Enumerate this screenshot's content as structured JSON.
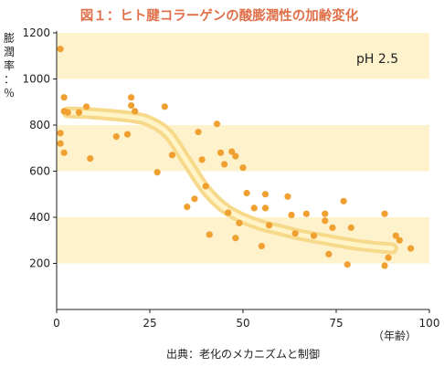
{
  "chart_data": {
    "type": "scatter",
    "title": "図１：ヒト腱コラーゲンの酸膨潤性の加齢変化",
    "ylabel_chars": [
      "膨",
      "潤",
      "率",
      "：",
      "％"
    ],
    "xlabel": "（年齢）",
    "xlim": [
      0,
      100
    ],
    "ylim": [
      0,
      1200
    ],
    "x_ticks": [
      0,
      25,
      50,
      75,
      100
    ],
    "y_ticks": [
      200,
      400,
      600,
      800,
      1000,
      1200
    ],
    "annotation": "pH 2.5",
    "source": "出典：老化のメカニズムと制御",
    "colors": {
      "points": "#f0a030",
      "bands": "#fdf2cc",
      "trend_outer": "#f6d98a",
      "trend_inner": "#fff4c8",
      "title": "#e0704a"
    },
    "points": [
      {
        "x": 1,
        "y": 1130
      },
      {
        "x": 2,
        "y": 920
      },
      {
        "x": 1,
        "y": 765
      },
      {
        "x": 2,
        "y": 860
      },
      {
        "x": 3,
        "y": 855
      },
      {
        "x": 1,
        "y": 720
      },
      {
        "x": 2,
        "y": 680
      },
      {
        "x": 6,
        "y": 855
      },
      {
        "x": 8,
        "y": 880
      },
      {
        "x": 9,
        "y": 655
      },
      {
        "x": 16,
        "y": 750
      },
      {
        "x": 19,
        "y": 760
      },
      {
        "x": 20,
        "y": 920
      },
      {
        "x": 20,
        "y": 885
      },
      {
        "x": 21,
        "y": 860
      },
      {
        "x": 27,
        "y": 595
      },
      {
        "x": 29,
        "y": 880
      },
      {
        "x": 31,
        "y": 670
      },
      {
        "x": 35,
        "y": 445
      },
      {
        "x": 37,
        "y": 480
      },
      {
        "x": 38,
        "y": 770
      },
      {
        "x": 39,
        "y": 650
      },
      {
        "x": 40,
        "y": 535
      },
      {
        "x": 41,
        "y": 325
      },
      {
        "x": 43,
        "y": 805
      },
      {
        "x": 44,
        "y": 680
      },
      {
        "x": 45,
        "y": 630
      },
      {
        "x": 46,
        "y": 420
      },
      {
        "x": 47,
        "y": 685
      },
      {
        "x": 48,
        "y": 310
      },
      {
        "x": 48,
        "y": 665
      },
      {
        "x": 49,
        "y": 375
      },
      {
        "x": 50,
        "y": 615
      },
      {
        "x": 51,
        "y": 505
      },
      {
        "x": 53,
        "y": 440
      },
      {
        "x": 55,
        "y": 275
      },
      {
        "x": 56,
        "y": 500
      },
      {
        "x": 56,
        "y": 440
      },
      {
        "x": 57,
        "y": 365
      },
      {
        "x": 62,
        "y": 490
      },
      {
        "x": 63,
        "y": 410
      },
      {
        "x": 64,
        "y": 330
      },
      {
        "x": 67,
        "y": 415
      },
      {
        "x": 69,
        "y": 320
      },
      {
        "x": 72,
        "y": 415
      },
      {
        "x": 72,
        "y": 385
      },
      {
        "x": 73,
        "y": 240
      },
      {
        "x": 74,
        "y": 355
      },
      {
        "x": 77,
        "y": 470
      },
      {
        "x": 78,
        "y": 195
      },
      {
        "x": 79,
        "y": 355
      },
      {
        "x": 88,
        "y": 415
      },
      {
        "x": 88,
        "y": 190
      },
      {
        "x": 89,
        "y": 225
      },
      {
        "x": 91,
        "y": 320
      },
      {
        "x": 92,
        "y": 300
      },
      {
        "x": 95,
        "y": 265
      }
    ],
    "trend": {
      "x": [
        3,
        10,
        20,
        25,
        30,
        35,
        40,
        45,
        50,
        55,
        60,
        65,
        70,
        75,
        80,
        85,
        90
      ],
      "y": [
        855,
        850,
        835,
        815,
        760,
        640,
        520,
        440,
        395,
        365,
        345,
        325,
        310,
        295,
        282,
        272,
        265
      ]
    }
  }
}
